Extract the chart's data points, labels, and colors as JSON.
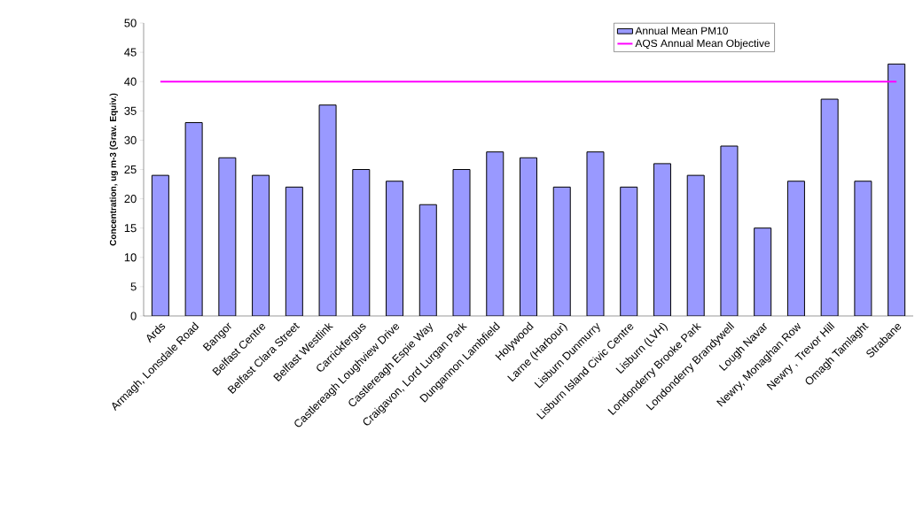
{
  "chart_data": {
    "type": "bar",
    "ylabel": "Concentration, ug m-3 (Grav. Equiv.)",
    "categories": [
      "Ards",
      "Armagh, Lonsdale Road",
      "Bangor",
      "Belfast Centre",
      "Belfast Clara Street",
      "Belfast Westlink",
      "Carrickfergus",
      "Castlereagh Loughview Drive",
      "Castlereagh Espie Way",
      "Craigavon, Lord Lurgan Park",
      "Dungannon Lambfield",
      "Holywood",
      "Larne (Harbour)",
      "Lisburn Dunmurry",
      "Lisburn Island Civic Centre",
      "Lisburn (LVH)",
      "Londonderry Brooke Park",
      "Londonderry Brandywell",
      "Lough Navar",
      "Newry, Monaghan Row",
      "Newry , Trevor Hill",
      "Omagh Tamlaght",
      "Strabane"
    ],
    "series": [
      {
        "name": "Annual Mean PM10",
        "color": "#9999ff",
        "values": [
          24,
          33,
          27,
          24,
          22,
          36,
          25,
          23,
          19,
          25,
          28,
          27,
          22,
          28,
          22,
          26,
          24,
          29,
          15,
          23,
          37,
          23,
          43
        ]
      },
      {
        "name": "AQS Annual Mean Objective",
        "type": "line",
        "color": "#ff00ff",
        "values": [
          40,
          40,
          40,
          40,
          40,
          40,
          40,
          40,
          40,
          40,
          40,
          40,
          40,
          40,
          40,
          40,
          40,
          40,
          40,
          40,
          40,
          40,
          40
        ]
      }
    ],
    "ylim": [
      0,
      50
    ],
    "yticks": [
      0,
      5,
      10,
      15,
      20,
      25,
      30,
      35,
      40,
      45,
      50
    ],
    "grid": false,
    "legend": "top right",
    "marker": "none"
  }
}
